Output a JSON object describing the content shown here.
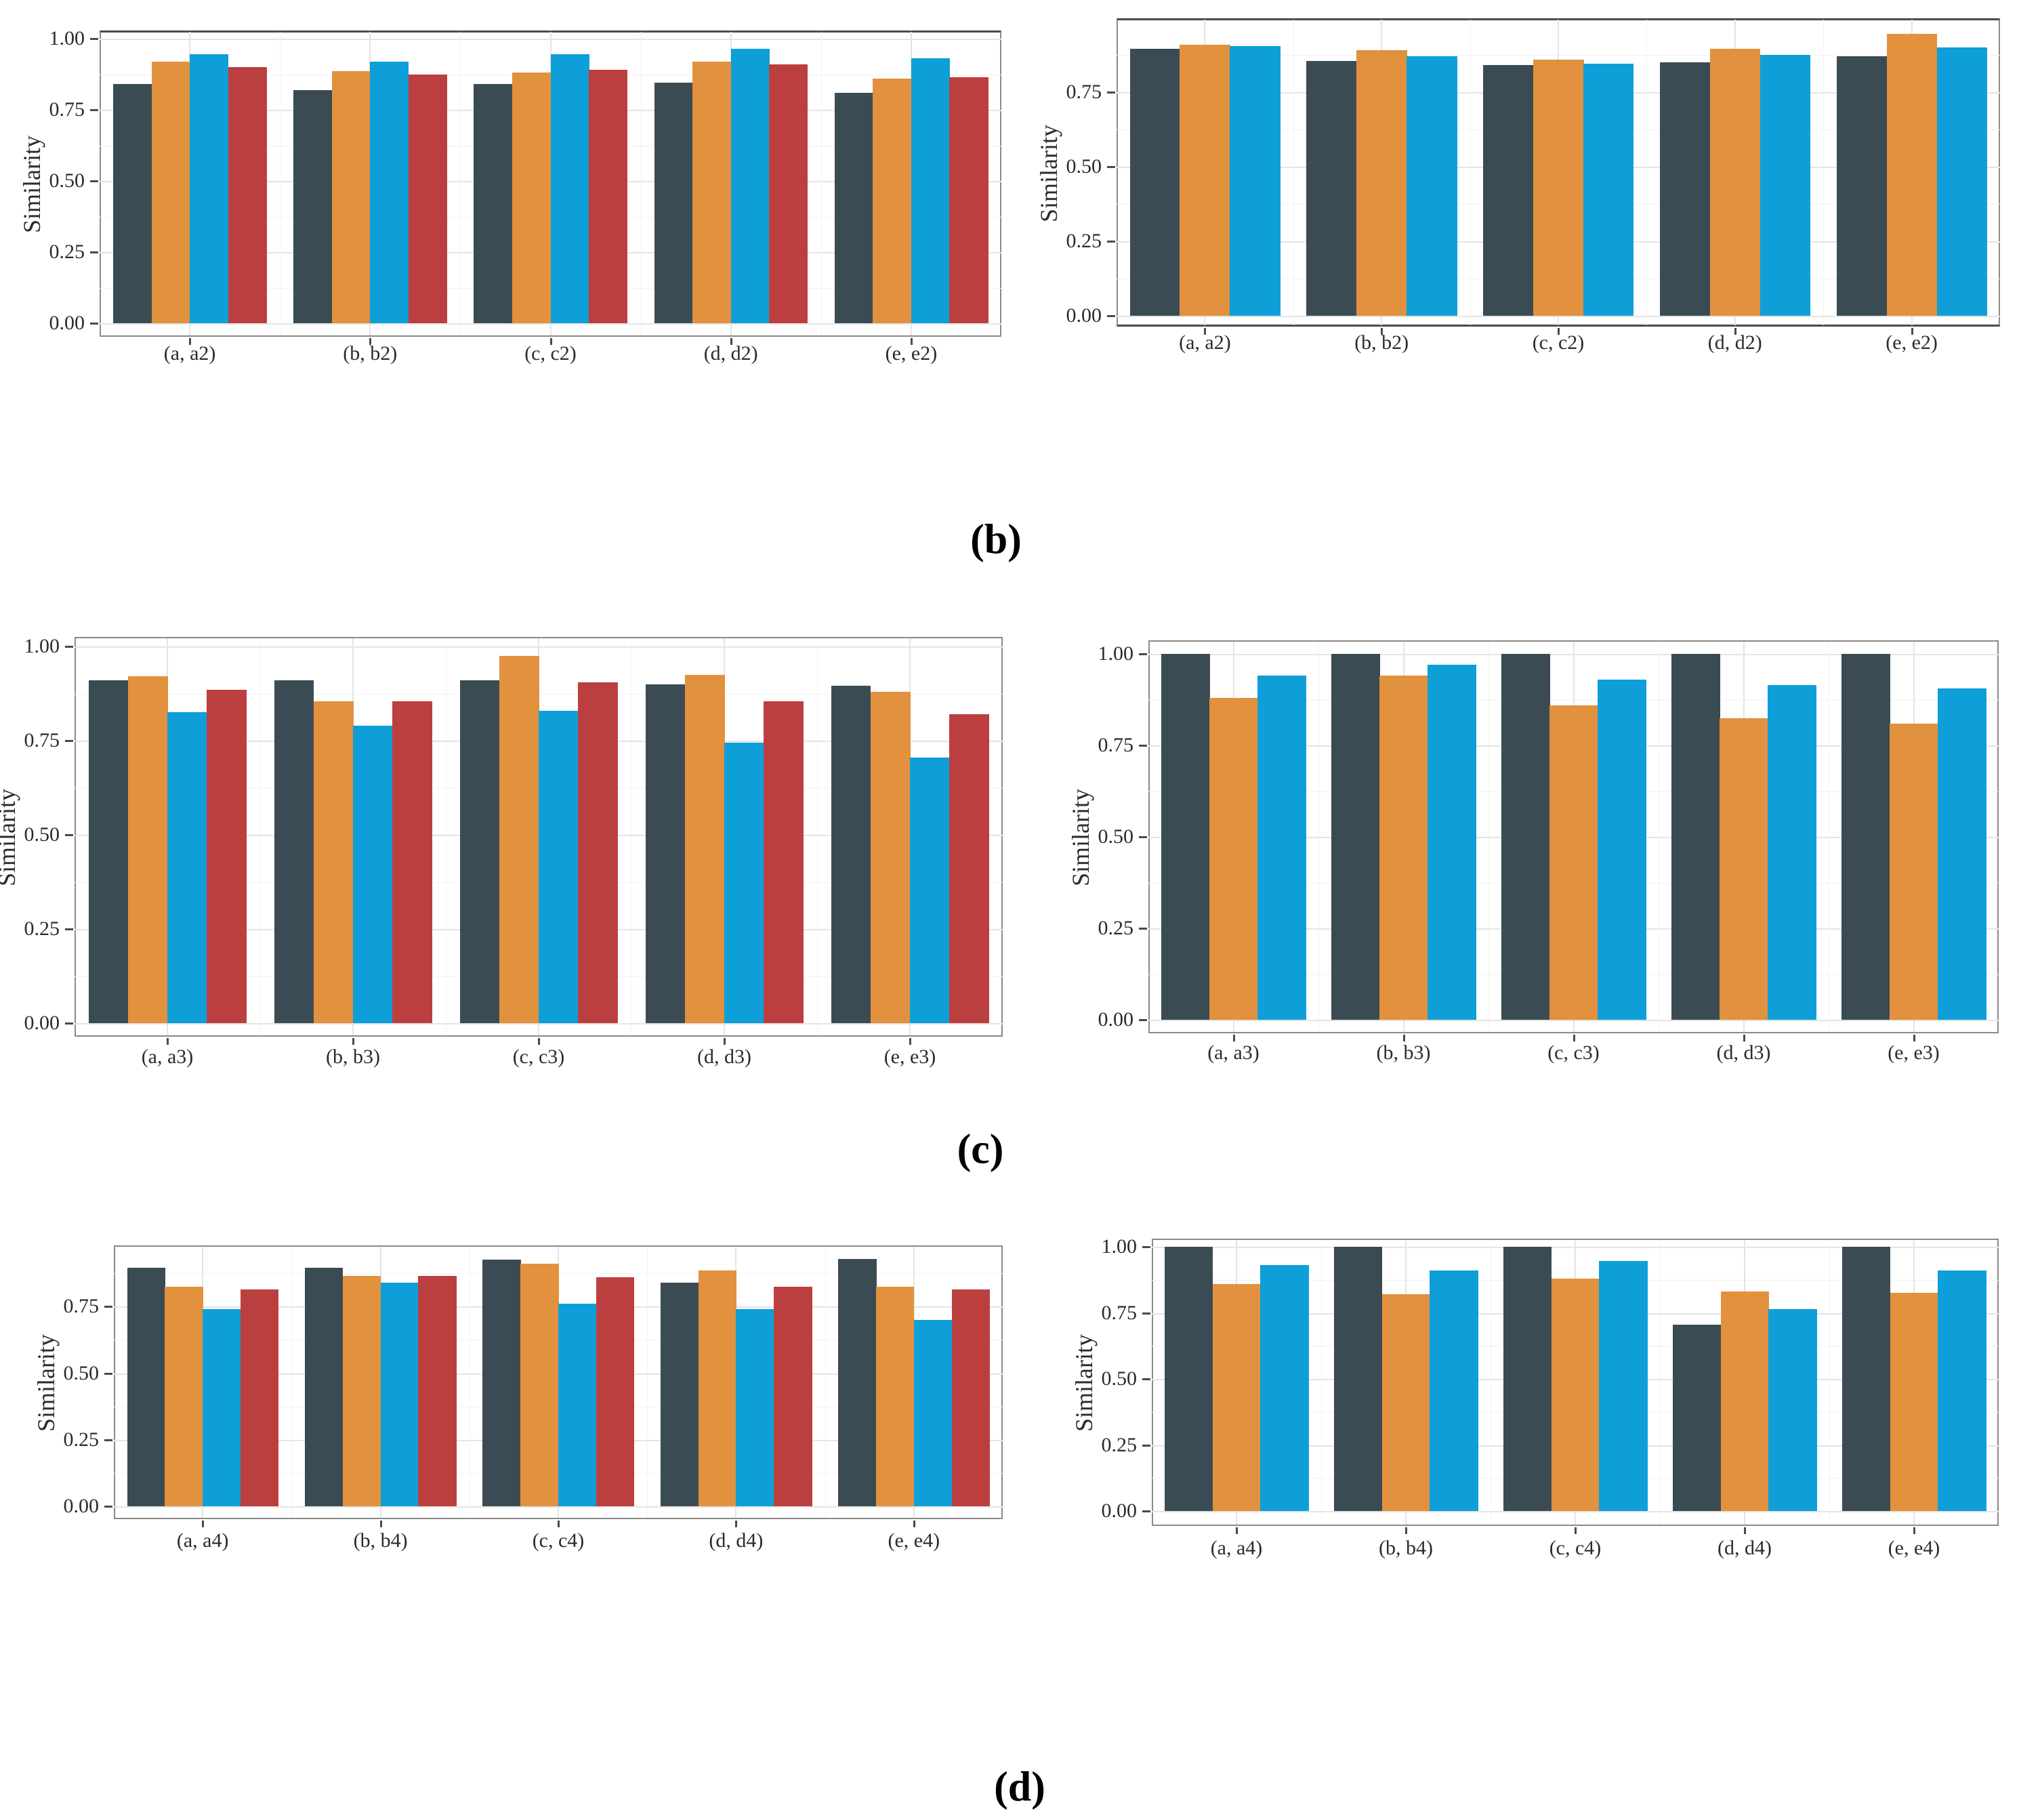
{
  "figure": {
    "captions": [
      {
        "label": "(b)"
      },
      {
        "label": "(c)"
      },
      {
        "label": "(d)"
      }
    ]
  },
  "palette": {
    "dark": "#3B4B54",
    "orange": "#E2913E",
    "blue": "#0E9FD8",
    "red": "#BC3F3F",
    "grid_major": "#E4E4E4",
    "grid_minor": "#F1F1F1",
    "panel_border": "#8A8A8A",
    "axis_text": "#2B2B2B"
  },
  "chart_data": [
    {
      "id": "b-left",
      "type": "bar",
      "title": "",
      "ylabel": "Similarity",
      "xlabel": "",
      "categories": [
        "(a, a2)",
        "(b, b2)",
        "(c, c2)",
        "(d, d2)",
        "(e, e2)"
      ],
      "series": [
        {
          "name": "series-1",
          "color": "dark",
          "values": [
            0.84,
            0.82,
            0.84,
            0.845,
            0.81
          ]
        },
        {
          "name": "series-2",
          "color": "orange",
          "values": [
            0.92,
            0.885,
            0.88,
            0.92,
            0.86
          ]
        },
        {
          "name": "series-3",
          "color": "blue",
          "values": [
            0.945,
            0.92,
            0.945,
            0.965,
            0.93
          ]
        },
        {
          "name": "series-4",
          "color": "red",
          "values": [
            0.9,
            0.875,
            0.89,
            0.91,
            0.865
          ]
        }
      ],
      "ylim": [
        0,
        1.03
      ],
      "ytick_values": [
        0.0,
        0.25,
        0.5,
        0.75,
        1.0
      ],
      "ytick_labels": [
        "0.00",
        "0.25",
        "0.50",
        "0.75",
        "1.00"
      ],
      "grid": "on",
      "legend": "none"
    },
    {
      "id": "b-right",
      "type": "bar",
      "title": "",
      "ylabel": "Similarity",
      "xlabel": "",
      "categories": [
        "(a, a2)",
        "(b, b2)",
        "(c, c2)",
        "(d, d2)",
        "(e, e2)"
      ],
      "series": [
        {
          "name": "series-1",
          "color": "dark",
          "values": [
            0.895,
            0.855,
            0.84,
            0.85,
            0.87
          ]
        },
        {
          "name": "series-2",
          "color": "orange",
          "values": [
            0.91,
            0.89,
            0.86,
            0.895,
            0.945
          ]
        },
        {
          "name": "series-3",
          "color": "blue",
          "values": [
            0.905,
            0.87,
            0.845,
            0.875,
            0.9
          ]
        }
      ],
      "ylim": [
        0,
        1.0
      ],
      "ytick_values": [
        0.0,
        0.25,
        0.5,
        0.75
      ],
      "ytick_labels": [
        "0.00",
        "0.25",
        "0.50",
        "0.75"
      ],
      "grid": "on",
      "legend": "none"
    },
    {
      "id": "c-left",
      "type": "bar",
      "title": "",
      "ylabel": "Similarity",
      "xlabel": "",
      "categories": [
        "(a, a3)",
        "(b, b3)",
        "(c, c3)",
        "(d, d3)",
        "(e, e3)"
      ],
      "series": [
        {
          "name": "series-1",
          "color": "dark",
          "values": [
            0.91,
            0.91,
            0.91,
            0.9,
            0.895
          ]
        },
        {
          "name": "series-2",
          "color": "orange",
          "values": [
            0.92,
            0.855,
            0.975,
            0.925,
            0.88
          ]
        },
        {
          "name": "series-3",
          "color": "blue",
          "values": [
            0.825,
            0.79,
            0.83,
            0.745,
            0.705
          ]
        },
        {
          "name": "series-4",
          "color": "red",
          "values": [
            0.885,
            0.855,
            0.905,
            0.855,
            0.82
          ]
        }
      ],
      "ylim": [
        0,
        1.03
      ],
      "ytick_values": [
        0.0,
        0.25,
        0.5,
        0.75,
        1.0
      ],
      "ytick_labels": [
        "0.00",
        "0.25",
        "0.50",
        "0.75",
        "1.00"
      ],
      "grid": "on",
      "legend": "none"
    },
    {
      "id": "c-right",
      "type": "bar",
      "title": "",
      "ylabel": "Similarity",
      "xlabel": "",
      "categories": [
        "(a, a3)",
        "(b, b3)",
        "(c, c3)",
        "(d, d3)",
        "(e, e3)"
      ],
      "series": [
        {
          "name": "series-1",
          "color": "dark",
          "values": [
            1.0,
            1.0,
            1.0,
            1.0,
            1.0
          ]
        },
        {
          "name": "series-2",
          "color": "orange",
          "values": [
            0.88,
            0.94,
            0.86,
            0.825,
            0.81
          ]
        },
        {
          "name": "series-3",
          "color": "blue",
          "values": [
            0.94,
            0.97,
            0.93,
            0.915,
            0.905
          ]
        }
      ],
      "ylim": [
        0,
        1.04
      ],
      "ytick_values": [
        0.0,
        0.25,
        0.5,
        0.75,
        1.0
      ],
      "ytick_labels": [
        "0.00",
        "0.25",
        "0.50",
        "0.75",
        "1.00"
      ],
      "grid": "on",
      "legend": "none"
    },
    {
      "id": "d-left",
      "type": "bar",
      "title": "",
      "ylabel": "Similarity",
      "xlabel": "",
      "categories": [
        "(a, a4)",
        "(b, b4)",
        "(c, c4)",
        "(d, d4)",
        "(e, e4)"
      ],
      "series": [
        {
          "name": "series-1",
          "color": "dark",
          "values": [
            0.895,
            0.895,
            0.925,
            0.84,
            0.93
          ]
        },
        {
          "name": "series-2",
          "color": "orange",
          "values": [
            0.825,
            0.865,
            0.91,
            0.885,
            0.825
          ]
        },
        {
          "name": "series-3",
          "color": "blue",
          "values": [
            0.74,
            0.84,
            0.76,
            0.74,
            0.7
          ]
        },
        {
          "name": "series-4",
          "color": "red",
          "values": [
            0.815,
            0.865,
            0.86,
            0.825,
            0.815
          ]
        }
      ],
      "ylim": [
        0,
        0.98
      ],
      "ytick_values": [
        0.0,
        0.25,
        0.5,
        0.75
      ],
      "ytick_labels": [
        "0.00",
        "0.25",
        "0.50",
        "0.75"
      ],
      "grid": "on",
      "legend": "none"
    },
    {
      "id": "d-right",
      "type": "bar",
      "title": "",
      "ylabel": "Similarity",
      "xlabel": "",
      "categories": [
        "(a, a4)",
        "(b, b4)",
        "(c, c4)",
        "(d, d4)",
        "(e, e4)"
      ],
      "series": [
        {
          "name": "series-1",
          "color": "dark",
          "values": [
            1.0,
            1.0,
            1.0,
            0.705,
            1.0
          ]
        },
        {
          "name": "series-2",
          "color": "orange",
          "values": [
            0.86,
            0.82,
            0.88,
            0.83,
            0.825
          ]
        },
        {
          "name": "series-3",
          "color": "blue",
          "values": [
            0.93,
            0.91,
            0.945,
            0.765,
            0.91
          ]
        }
      ],
      "ylim": [
        0,
        1.03
      ],
      "ytick_values": [
        0.0,
        0.25,
        0.5,
        0.75,
        1.0
      ],
      "ytick_labels": [
        "0.00",
        "0.25",
        "0.50",
        "0.75",
        "1.00"
      ],
      "grid": "on",
      "legend": "none"
    }
  ]
}
